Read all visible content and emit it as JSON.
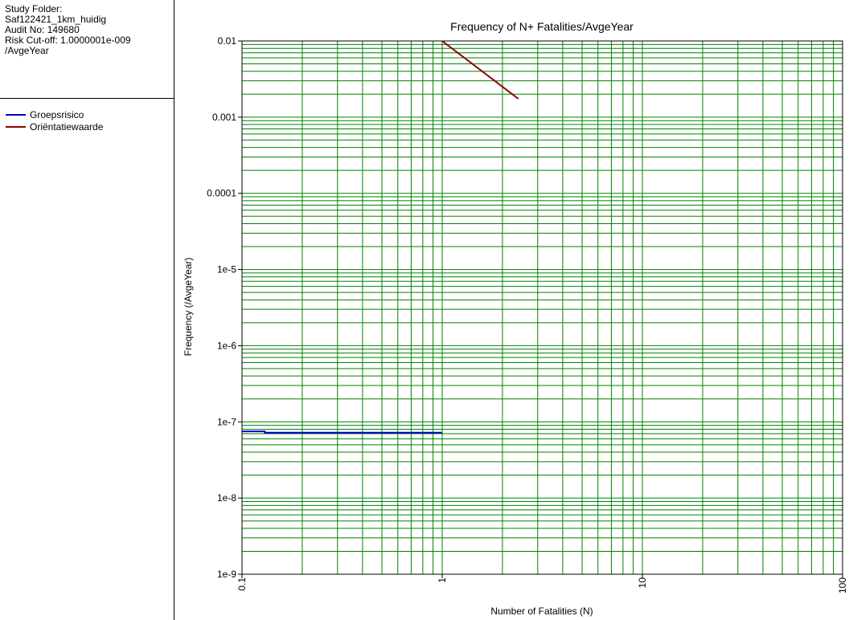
{
  "info": {
    "line1": "Study Folder:",
    "line2": "Saf122421_1km_huidig",
    "line3": "Audit No: 149680",
    "line4": "Risk Cut-off: 1.0000001e-009",
    "line5": "/AvgeYear"
  },
  "colors": {
    "grid": "#008000",
    "groepsrisico": "#0000cc",
    "orientatiewaarde": "#8b0000"
  },
  "chart_data": {
    "type": "line",
    "title": "Frequency of N+ Fatalities/AvgeYear",
    "xlabel": "Number of Fatalities (N)",
    "ylabel": "Frequency (/AvgeYear)",
    "x_scale": "log",
    "y_scale": "log",
    "xlim": [
      0.1,
      100
    ],
    "ylim": [
      1e-09,
      0.01
    ],
    "grid": true,
    "legend_placement": "left-panel",
    "x_ticks": [
      "0.1",
      "1",
      "10",
      "100"
    ],
    "y_ticks": [
      "1e-9",
      "1e-8",
      "1e-7",
      "1e-6",
      "1e-5",
      "0.0001",
      "0.001",
      "0.01"
    ],
    "series": [
      {
        "name": "Groepsrisico",
        "color": "#0000cc",
        "points": [
          [
            0.1,
            7.5e-08
          ],
          [
            0.13,
            7.5e-08
          ],
          [
            0.13,
            7.2e-08
          ],
          [
            1,
            7.2e-08
          ]
        ]
      },
      {
        "name": "Oriëntatiewaarde",
        "color": "#8b0000",
        "points": [
          [
            1,
            0.01
          ],
          [
            2.4,
            0.00174
          ]
        ]
      }
    ]
  }
}
